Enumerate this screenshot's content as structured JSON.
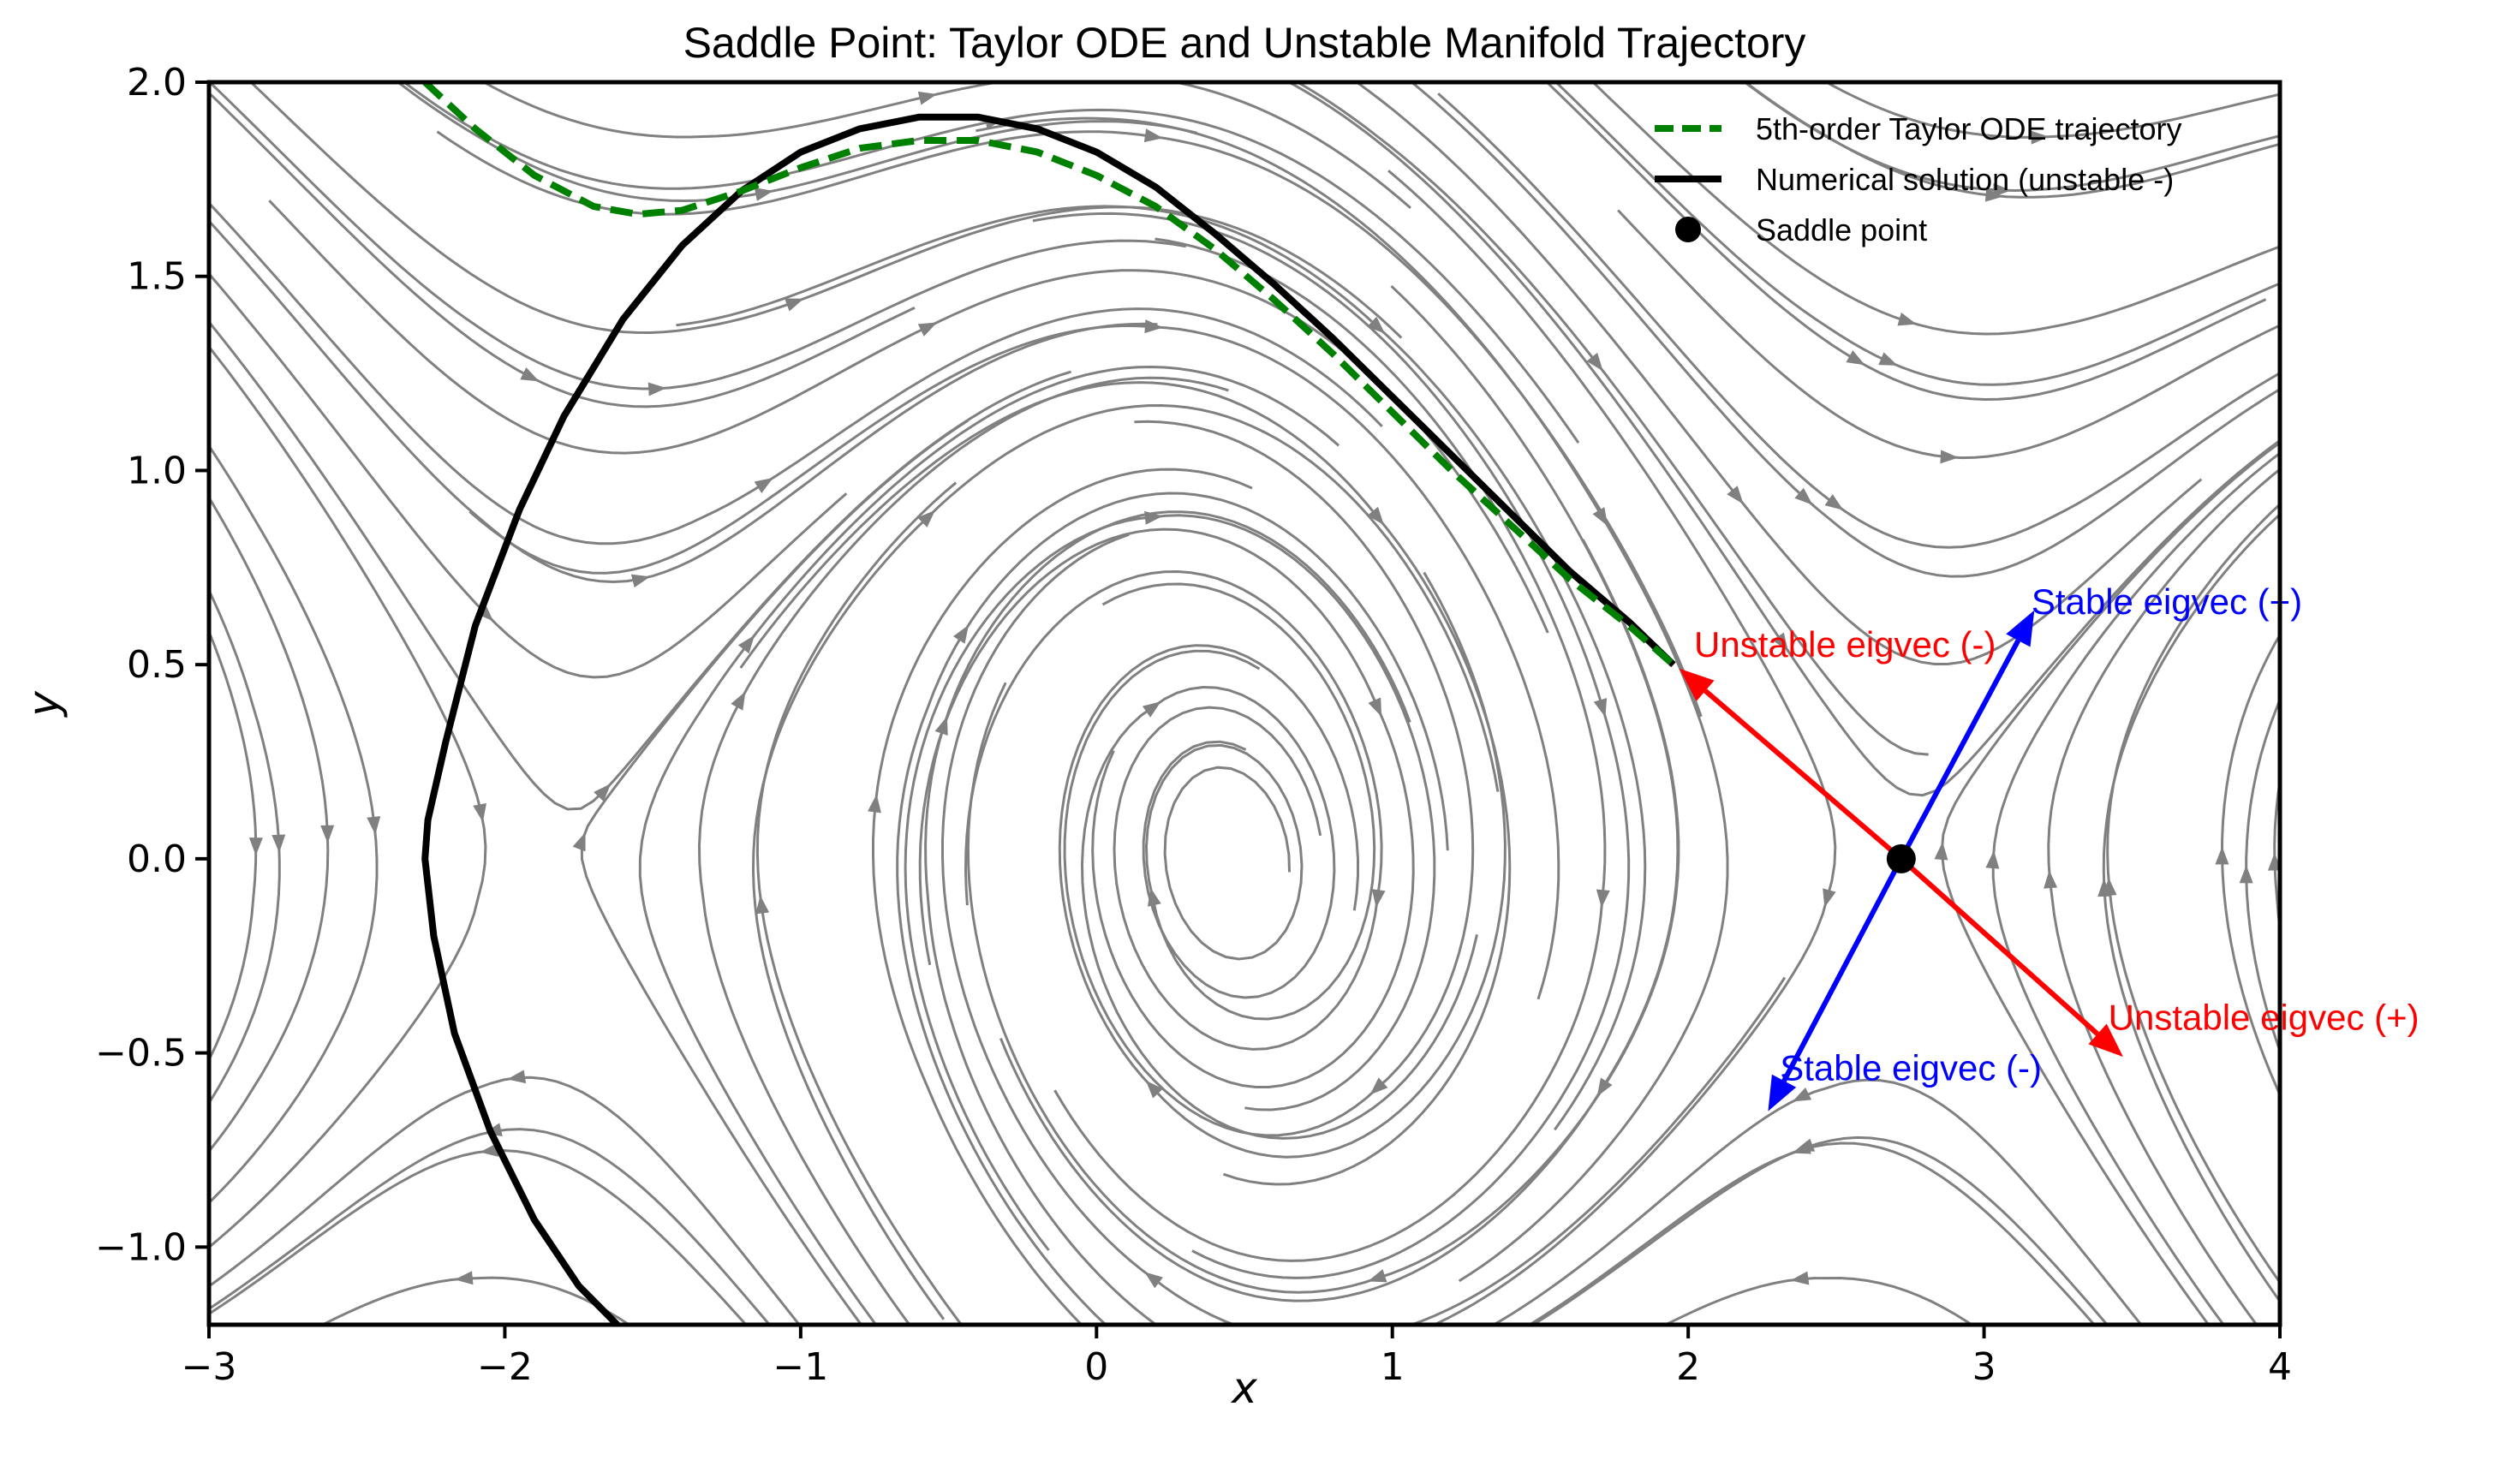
{
  "chart_data": {
    "type": "line",
    "title": "Saddle Point: Taylor ODE and Unstable Manifold Trajectory",
    "xlabel": "x",
    "ylabel": "y",
    "xlim": [
      -3,
      4
    ],
    "ylim": [
      -1.2,
      2.0
    ],
    "x_ticks": [
      -3,
      -2,
      -1,
      0,
      1,
      2,
      3,
      4
    ],
    "y_ticks": [
      -1.0,
      -0.5,
      0.0,
      0.5,
      1.0,
      1.5,
      2.0
    ],
    "x_tick_labels": [
      "−3",
      "−2",
      "−1",
      "0",
      "1",
      "2",
      "3",
      "4"
    ],
    "y_tick_labels": [
      "−1.0",
      "−0.5",
      "0.0",
      "0.5",
      "1.0",
      "1.5",
      "2.0"
    ],
    "grid": false,
    "legend_position": "top-right",
    "background_streamplot": {
      "description_color": "#808080",
      "center": [
        0.45,
        0.0
      ]
    },
    "series": [
      {
        "name": "5th-order Taylor ODE trajectory",
        "color": "#008000",
        "style": "dashed",
        "x": [
          -2.27,
          -2.1,
          -1.9,
          -1.7,
          -1.55,
          -1.4,
          -1.2,
          -1.0,
          -0.8,
          -0.6,
          -0.4,
          -0.2,
          0.0,
          0.2,
          0.4,
          0.6,
          0.8,
          1.0,
          1.2,
          1.4,
          1.6,
          1.8,
          1.95
        ],
        "y": [
          2.0,
          1.88,
          1.76,
          1.68,
          1.66,
          1.67,
          1.72,
          1.78,
          1.83,
          1.85,
          1.85,
          1.82,
          1.76,
          1.68,
          1.57,
          1.44,
          1.3,
          1.15,
          1.0,
          0.86,
          0.72,
          0.6,
          0.5
        ]
      },
      {
        "name": "Numerical solution (unstable -)",
        "color": "#000000",
        "style": "solid",
        "x": [
          1.95,
          1.8,
          1.6,
          1.4,
          1.2,
          1.0,
          0.8,
          0.6,
          0.4,
          0.2,
          0.0,
          -0.2,
          -0.4,
          -0.6,
          -0.8,
          -1.0,
          -1.2,
          -1.4,
          -1.6,
          -1.8,
          -1.95,
          -2.1,
          -2.2,
          -2.26,
          -2.27,
          -2.24,
          -2.17,
          -2.05,
          -1.9,
          -1.75,
          -1.62
        ],
        "y": [
          0.5,
          0.61,
          0.74,
          0.89,
          1.04,
          1.19,
          1.34,
          1.48,
          1.61,
          1.73,
          1.82,
          1.88,
          1.91,
          1.91,
          1.88,
          1.82,
          1.72,
          1.58,
          1.39,
          1.14,
          0.9,
          0.6,
          0.3,
          0.1,
          0.0,
          -0.2,
          -0.45,
          -0.7,
          -0.93,
          -1.1,
          -1.2
        ]
      }
    ],
    "points": [
      {
        "name": "Saddle point",
        "x": 2.72,
        "y": 0.0,
        "color": "#000000"
      }
    ],
    "annotations": [
      {
        "text": "Unstable eigvec (-)",
        "color": "#ff0000",
        "from": [
          2.72,
          0.0
        ],
        "to": [
          1.97,
          0.49
        ],
        "text_at": [
          2.02,
          0.52
        ]
      },
      {
        "text": "Unstable eigvec (+)",
        "color": "#ff0000",
        "from": [
          2.72,
          0.0
        ],
        "to": [
          3.47,
          -0.51
        ],
        "text_at": [
          3.42,
          -0.44
        ]
      },
      {
        "text": "Stable eigvec (+)",
        "color": "#0000ff",
        "from": [
          2.72,
          0.0
        ],
        "to": [
          3.17,
          0.64
        ],
        "text_at": [
          3.16,
          0.63
        ]
      },
      {
        "text": "Stable eigvec (-)",
        "color": "#0000ff",
        "from": [
          2.72,
          0.0
        ],
        "to": [
          2.27,
          -0.65
        ],
        "text_at": [
          2.31,
          -0.57
        ]
      }
    ]
  }
}
